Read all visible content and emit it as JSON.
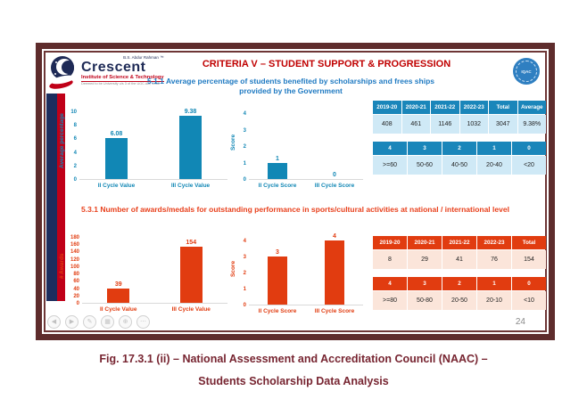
{
  "slide": {
    "page_number": "24",
    "header": {
      "logo": {
        "trademark": "B.S. Abdur Rahman ™",
        "name": "Crescent",
        "institute": "Institute of Science & Technology",
        "deemed": "Deemed to be University u/s 3 of the UGC Act, 1956"
      },
      "title": "CRITERIA V – STUDENT SUPPORT & PROGRESSION",
      "subtitle_511": "5.1.1 Average percentage of students benefited by scholarships and frees ships provided by the Government",
      "badge": "IQAC"
    },
    "section_531_title": "5.3.1 Number of awards/medals for outstanding performance in sports/cultural activities at national / international level"
  },
  "chart_data": [
    {
      "name": "scholarship-percentage",
      "type": "bar",
      "ylabel": "Average percentage",
      "ylim": [
        0,
        10
      ],
      "yticks": [
        0,
        2,
        4,
        6,
        8,
        10
      ],
      "categories": [
        "II Cycle Value",
        "III Cycle Value"
      ],
      "values": [
        6.08,
        9.38
      ],
      "color": "#1187b5"
    },
    {
      "name": "scholarship-score",
      "type": "bar",
      "ylabel": "Score",
      "ylim": [
        0,
        4
      ],
      "yticks": [
        0,
        1,
        2,
        3,
        4
      ],
      "categories": [
        "II Cycle Score",
        "III Cycle Score"
      ],
      "values": [
        1,
        0
      ],
      "color": "#1187b5"
    },
    {
      "name": "awards-count",
      "type": "bar",
      "ylabel": "# Awards",
      "ylim": [
        0,
        180
      ],
      "yticks": [
        0,
        20,
        40,
        60,
        80,
        100,
        120,
        140,
        160,
        180
      ],
      "categories": [
        "II Cycle Value",
        "III Cycle Value"
      ],
      "values": [
        39,
        154
      ],
      "color": "#e13c10"
    },
    {
      "name": "awards-score",
      "type": "bar",
      "ylabel": "Score",
      "ylim": [
        0,
        4
      ],
      "yticks": [
        0,
        1,
        2,
        3,
        4
      ],
      "categories": [
        "II Cycle Score",
        "III Cycle Score"
      ],
      "values": [
        3,
        4
      ],
      "color": "#e13c10"
    }
  ],
  "tables": {
    "scholarship_years": {
      "headers": [
        "2019-20",
        "2020-21",
        "2021-22",
        "2022-23",
        "Total",
        "Average"
      ],
      "values": [
        "408",
        "461",
        "1146",
        "1032",
        "3047",
        "9.38%"
      ]
    },
    "scholarship_scale": {
      "headers": [
        "4",
        "3",
        "2",
        "1",
        "0"
      ],
      "values": [
        ">=60",
        "50-60",
        "40-50",
        "20-40",
        "<20"
      ]
    },
    "awards_years": {
      "headers": [
        "2019-20",
        "2020-21",
        "2021-22",
        "2022-23",
        "Total"
      ],
      "values": [
        "8",
        "29",
        "41",
        "76",
        "154"
      ]
    },
    "awards_scale": {
      "headers": [
        "4",
        "3",
        "2",
        "1",
        "0"
      ],
      "values": [
        ">=80",
        "50-80",
        "20-50",
        "20-10",
        "<10"
      ]
    }
  },
  "caption": {
    "line1": "Fig. 17.3.1 (ii) – National Assessment and Accreditation Council (NAAC) –",
    "line2": "Students Scholarship Data Analysis"
  },
  "controls": [
    {
      "name": "previous",
      "glyph": "◀"
    },
    {
      "name": "next",
      "glyph": "▶"
    },
    {
      "name": "pen",
      "glyph": "✎"
    },
    {
      "name": "all-slides",
      "glyph": "▦"
    },
    {
      "name": "zoom",
      "glyph": "⊕"
    },
    {
      "name": "more",
      "glyph": "⋯"
    }
  ],
  "colors": {
    "blue": "#1187b5",
    "light_blue": "#cfe9f6",
    "red": "#e13c10",
    "light_red": "#fbe5da",
    "frame_maroon": "#5e2c2c",
    "title_red": "#c00000",
    "subtitle_blue": "#1f7ac2",
    "navy": "#1e2a56",
    "caption_maroon": "#772531"
  }
}
